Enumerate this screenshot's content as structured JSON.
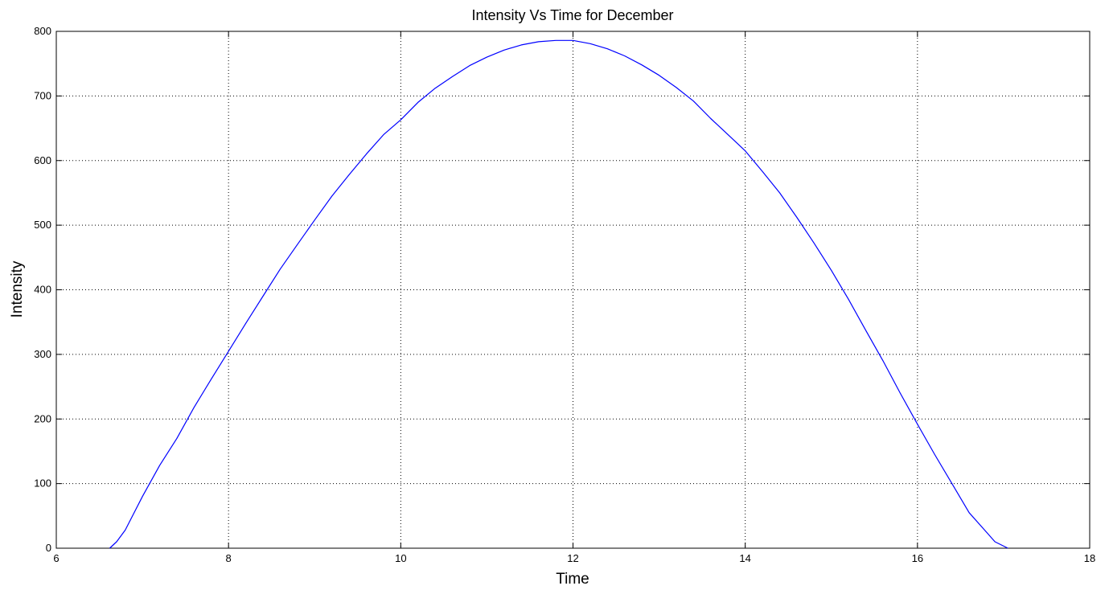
{
  "chart_data": {
    "type": "line",
    "title": "Intensity Vs Time for December",
    "xlabel": "Time",
    "ylabel": "Intensity",
    "xlim": [
      6,
      18
    ],
    "ylim": [
      0,
      800
    ],
    "xticks": [
      6,
      8,
      10,
      12,
      14,
      16,
      18
    ],
    "yticks": [
      0,
      100,
      200,
      300,
      400,
      500,
      600,
      700,
      800
    ],
    "grid": true,
    "grid_style": "dotted",
    "series": [
      {
        "color": "#0000ff",
        "x": [
          6.62,
          6.7,
          6.8,
          7.0,
          7.2,
          7.4,
          7.6,
          7.8,
          8.0,
          8.2,
          8.4,
          8.6,
          8.8,
          9.0,
          9.2,
          9.4,
          9.6,
          9.8,
          10.0,
          10.2,
          10.4,
          10.6,
          10.8,
          11.0,
          11.2,
          11.4,
          11.6,
          11.8,
          12.0,
          12.2,
          12.4,
          12.6,
          12.8,
          13.0,
          13.2,
          13.4,
          13.6,
          13.8,
          14.0,
          14.2,
          14.4,
          14.6,
          14.8,
          15.0,
          15.2,
          15.4,
          15.6,
          15.8,
          16.0,
          16.2,
          16.4,
          16.6,
          16.8,
          16.9,
          17.05
        ],
        "y": [
          0,
          10,
          28,
          80,
          128,
          170,
          218,
          262,
          305,
          348,
          390,
          432,
          470,
          508,
          545,
          578,
          610,
          640,
          663,
          690,
          712,
          730,
          747,
          760,
          771,
          779,
          784,
          786,
          786,
          781,
          773,
          762,
          748,
          732,
          713,
          692,
          665,
          640,
          615,
          583,
          550,
          512,
          472,
          430,
          385,
          337,
          290,
          240,
          192,
          145,
          100,
          55,
          25,
          10,
          0
        ]
      }
    ]
  }
}
